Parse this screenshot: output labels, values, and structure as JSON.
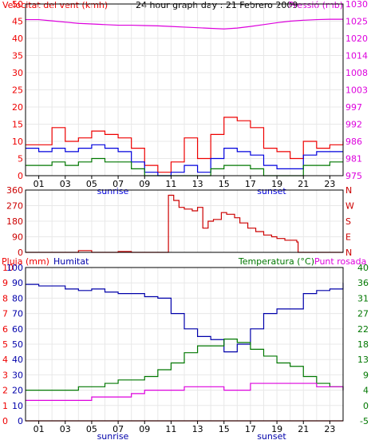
{
  "colors": {
    "wind_avg": "#0000dd",
    "wind_gust": "#ee0000",
    "wind_min": "#007700",
    "pressure": "#dd00dd",
    "direction": "#cc0000",
    "humidity": "#0000aa",
    "temperature": "#007700",
    "dewpoint": "#dd00dd",
    "rain": "#ee0000",
    "grid": "#e8e8e8",
    "axis": "#000000"
  },
  "chart_data": [
    {
      "type": "line",
      "title": "24 hour graph day : 21 Febrero 2009",
      "ylabel_left": "Velocitat del vent (kmh)",
      "ylabel_right": "Pressió (mb)",
      "ylim_left": [
        0,
        50
      ],
      "ylim_right": [
        975,
        1030
      ],
      "yticks_left": [
        "0",
        "5",
        "10",
        "15",
        "20",
        "25",
        "30",
        "35",
        "40",
        "45",
        "50"
      ],
      "yticks_right": [
        "975",
        "981",
        "986",
        "992",
        "997",
        "1003",
        "1008",
        "1014",
        "1020",
        "1025",
        "1030"
      ],
      "xticks": [
        "01",
        "03",
        "05",
        "07",
        "09",
        "11",
        "13",
        "15",
        "17",
        "19",
        "21",
        "23"
      ],
      "annotations": [
        "sunrise",
        "sunset"
      ],
      "grid": true,
      "x_hours": [
        0,
        1,
        2,
        3,
        4,
        5,
        6,
        7,
        8,
        9,
        10,
        11,
        12,
        13,
        14,
        15,
        16,
        17,
        18,
        19,
        20,
        21,
        22,
        23,
        24
      ],
      "series": [
        {
          "name": "Velocitat del vent (kmh)",
          "axis": "left",
          "role": "gust",
          "values": [
            9,
            9,
            14,
            10,
            11,
            13,
            12,
            11,
            8,
            3,
            1,
            4,
            11,
            5,
            12,
            17,
            16,
            14,
            8,
            7,
            5,
            10,
            8,
            9,
            10
          ]
        },
        {
          "name": "Velocitat del vent (kmh)",
          "axis": "left",
          "role": "avg",
          "values": [
            8,
            7,
            8,
            7,
            8,
            9,
            8,
            7,
            4,
            1,
            0,
            1,
            3,
            1,
            5,
            8,
            7,
            6,
            3,
            2,
            2,
            6,
            7,
            7,
            7
          ]
        },
        {
          "name": "Velocitat del vent (kmh)",
          "axis": "left",
          "role": "min",
          "values": [
            3,
            3,
            4,
            3,
            4,
            5,
            4,
            4,
            2,
            0,
            0,
            0,
            0,
            0,
            2,
            3,
            3,
            2,
            0,
            0,
            0,
            3,
            3,
            4,
            4
          ]
        },
        {
          "name": "Pressió (mb)",
          "axis": "right",
          "role": "pressure",
          "values": [
            1025,
            1025,
            1024.6,
            1024.2,
            1023.8,
            1023.6,
            1023.4,
            1023.2,
            1023.2,
            1023.1,
            1023.0,
            1022.8,
            1022.6,
            1022.4,
            1022.2,
            1022.0,
            1022.3,
            1022.8,
            1023.4,
            1024.0,
            1024.5,
            1024.8,
            1025,
            1025.1,
            1025.1
          ]
        }
      ]
    },
    {
      "type": "line",
      "ylim": [
        0,
        360
      ],
      "yticks_left": [
        "0",
        "90",
        "180",
        "270",
        "360"
      ],
      "yticks_right": [
        "N",
        "E",
        "S",
        "W",
        "N"
      ],
      "grid": true,
      "x_hours": [
        0,
        1,
        2,
        3,
        4,
        5,
        6,
        7,
        8,
        9,
        10,
        10.6,
        10.8,
        11.2,
        11.6,
        12,
        12.6,
        13,
        13.4,
        13.8,
        14.2,
        14.8,
        15.2,
        15.8,
        16.2,
        16.8,
        17.4,
        18,
        18.6,
        19,
        19.6,
        20,
        20.5,
        20.6,
        21.2,
        22,
        23,
        24
      ],
      "series": [
        {
          "name": "",
          "role": "direction",
          "values": [
            0,
            0,
            0,
            0,
            10,
            0,
            0,
            5,
            0,
            0,
            0,
            0,
            330,
            300,
            260,
            250,
            240,
            260,
            140,
            180,
            190,
            230,
            220,
            200,
            170,
            140,
            120,
            100,
            90,
            80,
            70,
            70,
            60,
            0,
            0,
            0,
            0,
            0
          ]
        }
      ]
    },
    {
      "type": "line",
      "ylabel_left": "Pluja (mm)",
      "ylabel_left2": "Humitat",
      "ylabel_right": "Temperatura (°C)",
      "ylabel_right2": "Punt rosada",
      "ylim_rain": [
        0,
        10
      ],
      "ylim_humidity": [
        0,
        100
      ],
      "ylim_temp": [
        -5,
        40
      ],
      "yticks_rain": [
        "0",
        "1",
        "2",
        "3",
        "4",
        "5",
        "6",
        "7",
        "8",
        "9",
        "10"
      ],
      "yticks_humidity": [
        "0",
        "10",
        "20",
        "30",
        "40",
        "50",
        "60",
        "70",
        "80",
        "90",
        "100"
      ],
      "yticks_temp": [
        "-5",
        "0",
        "4",
        "9",
        "13",
        "18",
        "22",
        "27",
        "31",
        "36",
        "40"
      ],
      "xticks": [
        "01",
        "03",
        "05",
        "07",
        "09",
        "11",
        "13",
        "15",
        "17",
        "19",
        "21",
        "23"
      ],
      "annotations": [
        "sunrise",
        "sunset"
      ],
      "grid": true,
      "x_hours": [
        0,
        1,
        2,
        3,
        4,
        5,
        6,
        7,
        8,
        9,
        10,
        11,
        12,
        13,
        14,
        15,
        16,
        17,
        18,
        19,
        20,
        21,
        22,
        23,
        24
      ],
      "series": [
        {
          "name": "Humitat",
          "role": "humidity",
          "values": [
            89,
            88,
            88,
            86,
            85,
            86,
            84,
            83,
            83,
            81,
            80,
            70,
            60,
            55,
            53,
            45,
            50,
            60,
            70,
            73,
            73,
            83,
            85,
            86,
            90
          ]
        },
        {
          "name": "Temperatura (°C)",
          "role": "temperature",
          "values": [
            4,
            4,
            4,
            4,
            5,
            5,
            6,
            7,
            7,
            8,
            10,
            12,
            15,
            17,
            17,
            19,
            18,
            16,
            14,
            12,
            11,
            8,
            6,
            5,
            4
          ]
        },
        {
          "name": "Punt rosada",
          "role": "dewpoint",
          "values": [
            1,
            1,
            1,
            1,
            1,
            2,
            2,
            2,
            3,
            4,
            4,
            4,
            5,
            5,
            5,
            4,
            4,
            6,
            6,
            6,
            6,
            6,
            5,
            5,
            4
          ]
        },
        {
          "name": "Pluja (mm)",
          "role": "rain",
          "values": [
            0,
            0,
            0,
            0,
            0,
            0,
            0,
            0,
            0,
            0,
            0,
            0,
            0,
            0,
            0,
            0,
            0,
            0,
            0,
            0,
            0,
            0,
            0,
            0,
            0
          ]
        }
      ]
    }
  ]
}
